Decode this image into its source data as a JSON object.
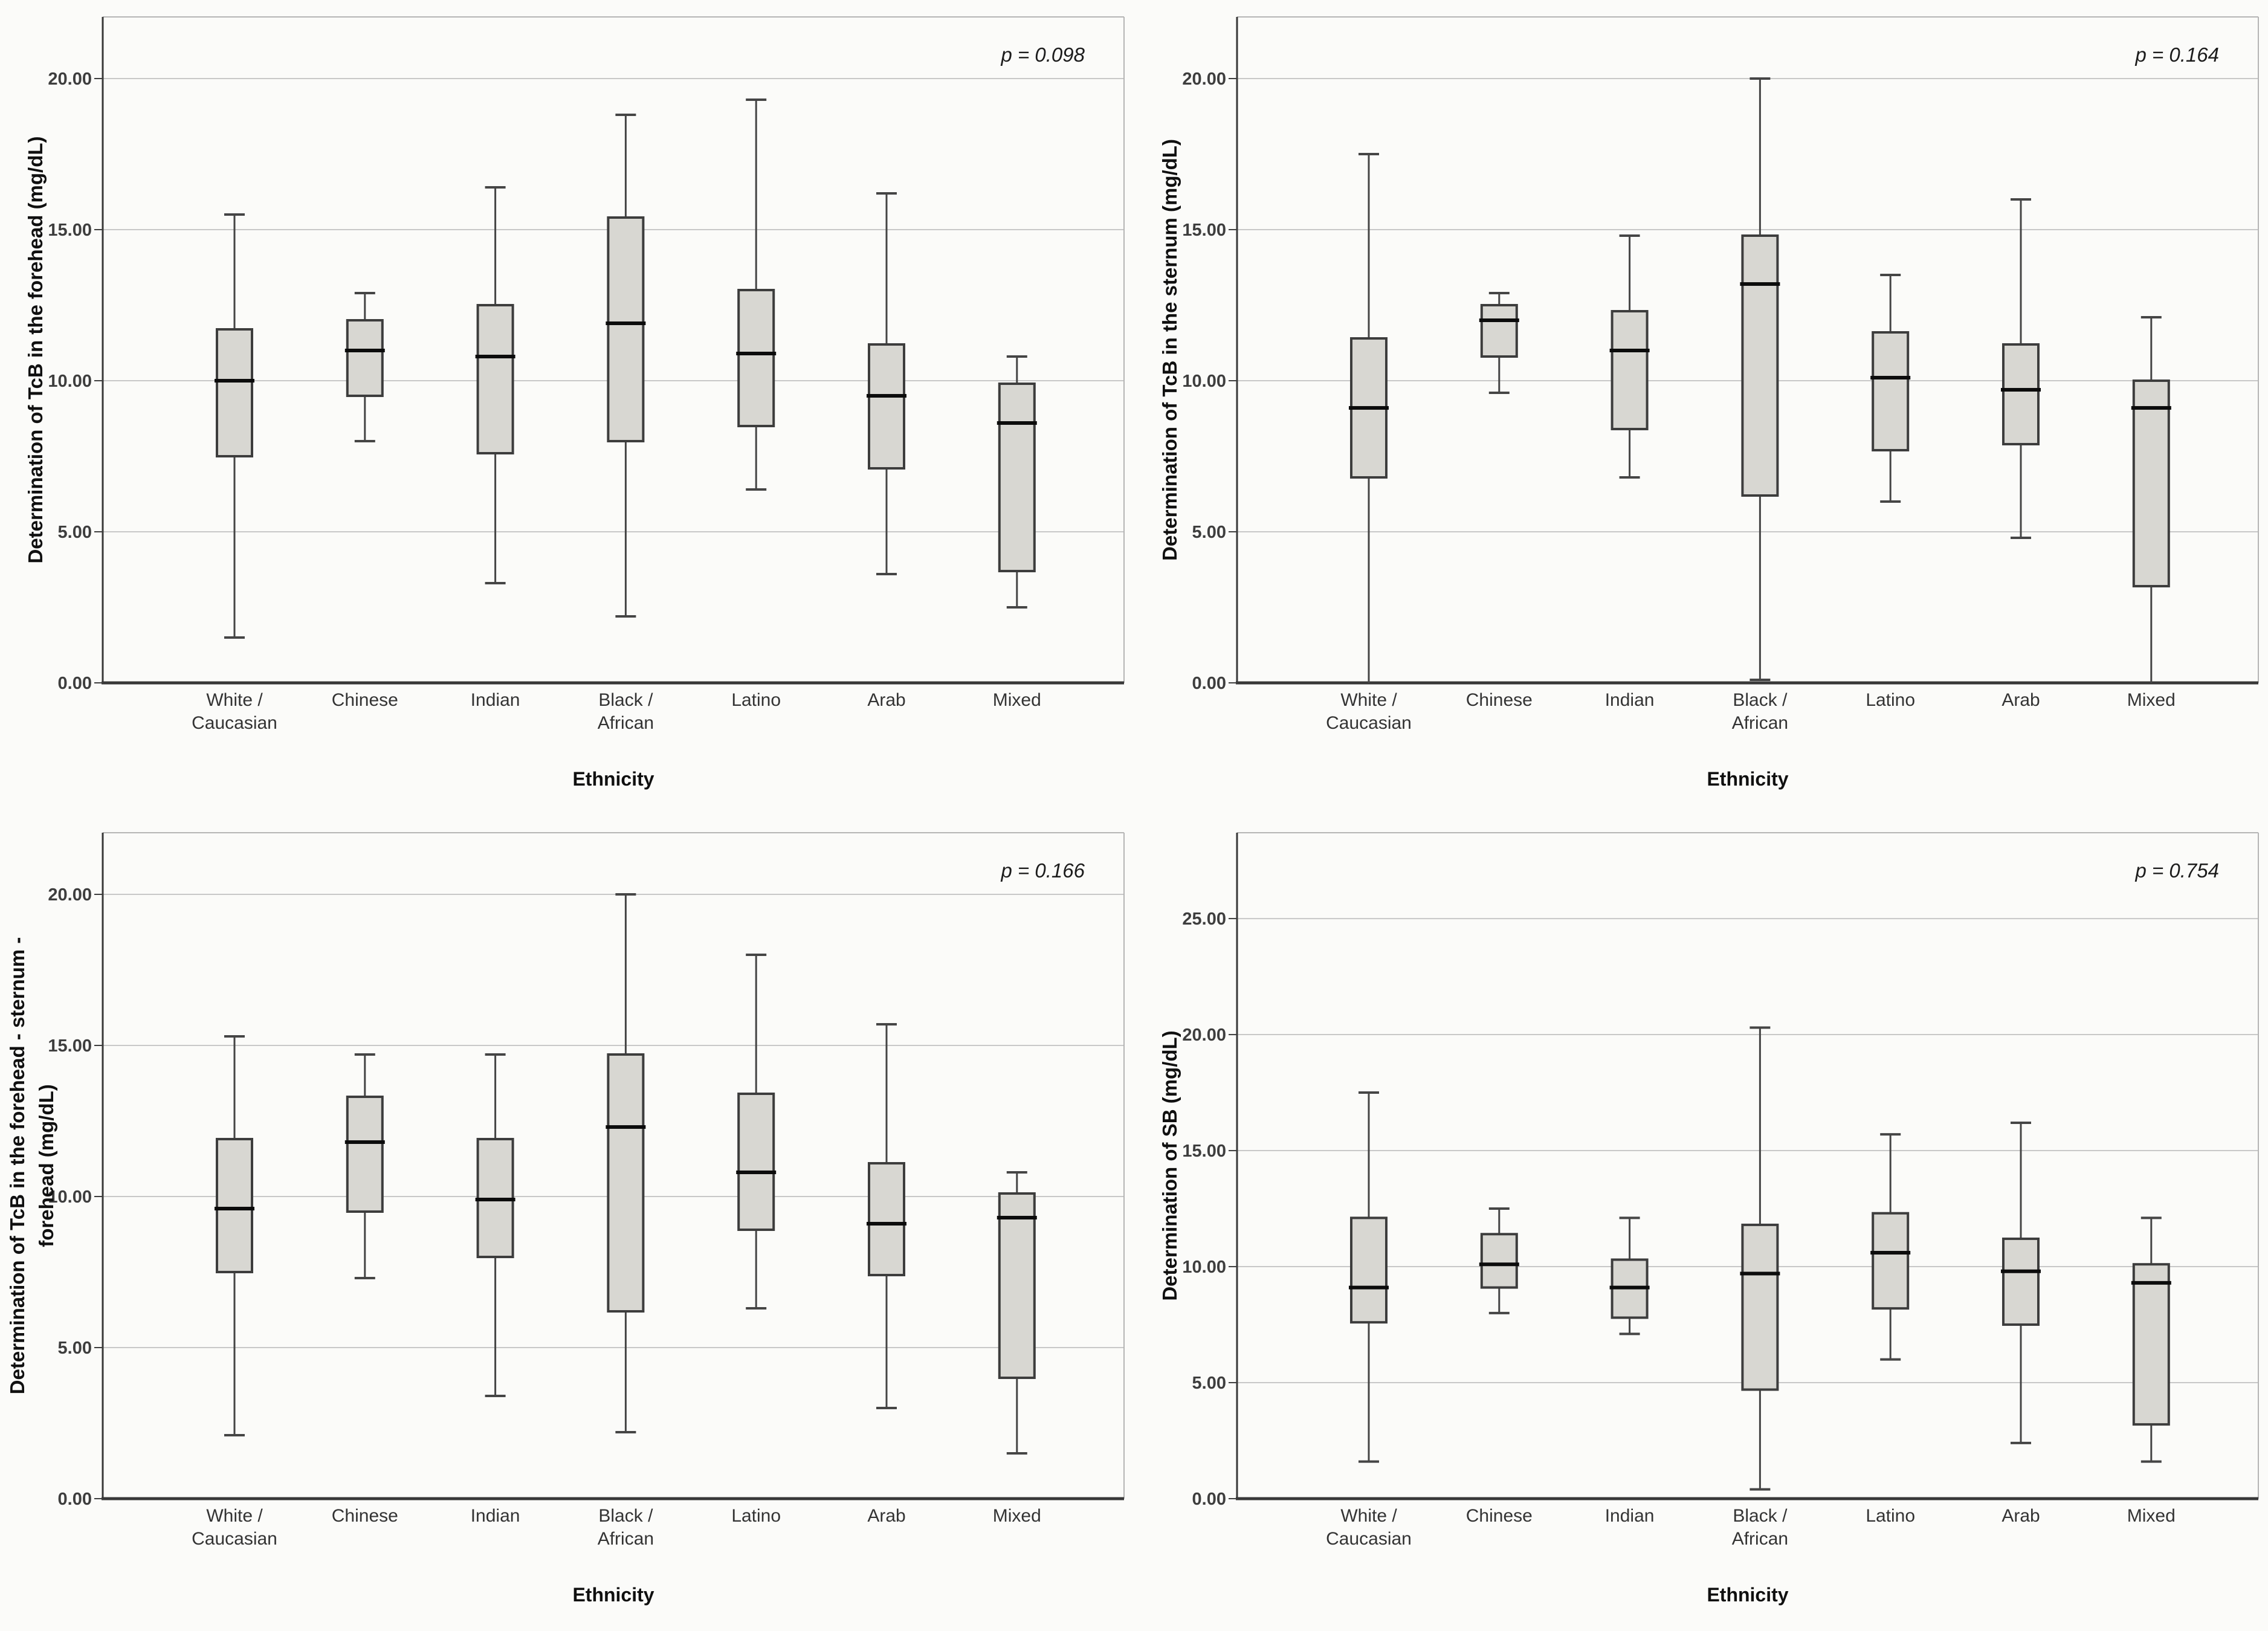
{
  "figure": {
    "description": "Four SPSS-style box plots of bilirubin determinations by ethnicity",
    "xlabel": "Ethnicity"
  },
  "styles": {
    "background": "#fbfbf9",
    "box_fill": "#d8d7d2",
    "box_border": "#3d3d3d",
    "median_color": "#0c0c0c",
    "whisker_color": "#454545",
    "gridline_color": "#c8c8c8",
    "frame_color": "#b5b5b5",
    "axis_color": "#383838",
    "tick_label_color": "#3e3e3e",
    "category_label_color": "#333333",
    "title_color": "#101010",
    "p_color": "#1c1c1c"
  },
  "chart_data": [
    {
      "type": "boxplot",
      "panel": "top-left",
      "ylabel_lines": [
        "Determination of TcB in the forehead (mg/dL)"
      ],
      "xlabel": "Ethnicity",
      "p_label": "p = 0.098",
      "yticks": [
        0,
        5,
        10,
        15,
        20
      ],
      "ytick_labels": [
        "0.00",
        "5.00",
        "10.00",
        "15.00",
        "20.00"
      ],
      "ymax": 22.04,
      "grid": true,
      "legend": "none",
      "categories": [
        "White /\nCaucasian",
        "Chinese",
        "Indian",
        "Black /\nAfrican",
        "Latino",
        "Arab",
        "Mixed"
      ],
      "boxes": [
        {
          "category": "White / Caucasian",
          "min": 1.5,
          "q1": 7.5,
          "median": 10.0,
          "q3": 11.7,
          "max": 15.5
        },
        {
          "category": "Chinese",
          "min": 8.0,
          "q1": 9.5,
          "median": 11.0,
          "q3": 12.0,
          "max": 12.9
        },
        {
          "category": "Indian",
          "min": 3.3,
          "q1": 7.6,
          "median": 10.8,
          "q3": 12.5,
          "max": 16.4
        },
        {
          "category": "Black / African",
          "min": 2.2,
          "q1": 8.0,
          "median": 11.9,
          "q3": 15.4,
          "max": 18.8
        },
        {
          "category": "Latino",
          "min": 6.4,
          "q1": 8.5,
          "median": 10.9,
          "q3": 13.0,
          "max": 19.3
        },
        {
          "category": "Arab",
          "min": 3.6,
          "q1": 7.1,
          "median": 9.5,
          "q3": 11.2,
          "max": 16.2
        },
        {
          "category": "Mixed",
          "min": 2.5,
          "q1": 3.7,
          "median": 8.6,
          "q3": 9.9,
          "max": 10.8
        }
      ]
    },
    {
      "type": "boxplot",
      "panel": "top-right",
      "ylabel_lines": [
        "Determination of TcB in the sternum (mg/dL)"
      ],
      "xlabel": "Ethnicity",
      "p_label": "p = 0.164",
      "yticks": [
        0,
        5,
        10,
        15,
        20
      ],
      "ytick_labels": [
        "0.00",
        "5.00",
        "10.00",
        "15.00",
        "20.00"
      ],
      "ymax": 22.04,
      "grid": true,
      "legend": "none",
      "categories": [
        "White /\nCaucasian",
        "Chinese",
        "Indian",
        "Black /\nAfrican",
        "Latino",
        "Arab",
        "Mixed"
      ],
      "boxes": [
        {
          "category": "White / Caucasian",
          "min": 0.0,
          "q1": 6.8,
          "median": 9.1,
          "q3": 11.4,
          "max": 17.5
        },
        {
          "category": "Chinese",
          "min": 9.6,
          "q1": 10.8,
          "median": 12.0,
          "q3": 12.5,
          "max": 12.9
        },
        {
          "category": "Indian",
          "min": 6.8,
          "q1": 8.4,
          "median": 11.0,
          "q3": 12.3,
          "max": 14.8
        },
        {
          "category": "Black / African",
          "min": 0.1,
          "q1": 6.2,
          "median": 13.2,
          "q3": 14.8,
          "max": 20.0
        },
        {
          "category": "Latino",
          "min": 6.0,
          "q1": 7.7,
          "median": 10.1,
          "q3": 11.6,
          "max": 13.5
        },
        {
          "category": "Arab",
          "min": 4.8,
          "q1": 7.9,
          "median": 9.7,
          "q3": 11.2,
          "max": 16.0
        },
        {
          "category": "Mixed",
          "min": 0.0,
          "q1": 3.2,
          "median": 9.1,
          "q3": 10.0,
          "max": 12.1
        }
      ]
    },
    {
      "type": "boxplot",
      "panel": "bottom-left",
      "ylabel_lines": [
        "Determination of TcB in the forehead - sternum -",
        "forehead (mg/dL)"
      ],
      "xlabel": "Ethnicity",
      "p_label": "p = 0.166",
      "yticks": [
        0,
        5,
        10,
        15,
        20
      ],
      "ytick_labels": [
        "0.00",
        "5.00",
        "10.00",
        "15.00",
        "20.00"
      ],
      "ymax": 22.04,
      "grid": true,
      "legend": "none",
      "categories": [
        "White /\nCaucasian",
        "Chinese",
        "Indian",
        "Black /\nAfrican",
        "Latino",
        "Arab",
        "Mixed"
      ],
      "boxes": [
        {
          "category": "White / Caucasian",
          "min": 2.1,
          "q1": 7.5,
          "median": 9.6,
          "q3": 11.9,
          "max": 15.3
        },
        {
          "category": "Chinese",
          "min": 7.3,
          "q1": 9.5,
          "median": 11.8,
          "q3": 13.3,
          "max": 14.7
        },
        {
          "category": "Indian",
          "min": 3.4,
          "q1": 8.0,
          "median": 9.9,
          "q3": 11.9,
          "max": 14.7
        },
        {
          "category": "Black / African",
          "min": 2.2,
          "q1": 6.2,
          "median": 12.3,
          "q3": 14.7,
          "max": 20.0
        },
        {
          "category": "Latino",
          "min": 6.3,
          "q1": 8.9,
          "median": 10.8,
          "q3": 13.4,
          "max": 18.0
        },
        {
          "category": "Arab",
          "min": 3.0,
          "q1": 7.4,
          "median": 9.1,
          "q3": 11.1,
          "max": 15.7
        },
        {
          "category": "Mixed",
          "min": 1.5,
          "q1": 4.0,
          "median": 9.3,
          "q3": 10.1,
          "max": 10.8
        }
      ]
    },
    {
      "type": "boxplot",
      "panel": "bottom-right",
      "ylabel_lines": [
        "Determination of SB (mg/dL)"
      ],
      "xlabel": "Ethnicity",
      "p_label": "p = 0.754",
      "yticks": [
        0,
        5,
        10,
        15,
        20,
        25
      ],
      "ytick_labels": [
        "0.00",
        "5.00",
        "10.00",
        "15.00",
        "20.00",
        "25.00"
      ],
      "ymax": 28.7,
      "grid": true,
      "legend": "none",
      "categories": [
        "White /\nCaucasian",
        "Chinese",
        "Indian",
        "Black /\nAfrican",
        "Latino",
        "Arab",
        "Mixed"
      ],
      "boxes": [
        {
          "category": "White / Caucasian",
          "min": 1.6,
          "q1": 7.6,
          "median": 9.1,
          "q3": 12.1,
          "max": 17.5
        },
        {
          "category": "Chinese",
          "min": 8.0,
          "q1": 9.1,
          "median": 10.1,
          "q3": 11.4,
          "max": 12.5
        },
        {
          "category": "Indian",
          "min": 7.1,
          "q1": 7.8,
          "median": 9.1,
          "q3": 10.3,
          "max": 12.1
        },
        {
          "category": "Black / African",
          "min": 0.4,
          "q1": 4.7,
          "median": 9.7,
          "q3": 11.8,
          "max": 20.3
        },
        {
          "category": "Latino",
          "min": 6.0,
          "q1": 8.2,
          "median": 10.6,
          "q3": 12.3,
          "max": 15.7
        },
        {
          "category": "Arab",
          "min": 2.4,
          "q1": 7.5,
          "median": 9.8,
          "q3": 11.2,
          "max": 16.2
        },
        {
          "category": "Mixed",
          "min": 1.6,
          "q1": 3.2,
          "median": 9.3,
          "q3": 10.1,
          "max": 12.1
        }
      ]
    }
  ]
}
